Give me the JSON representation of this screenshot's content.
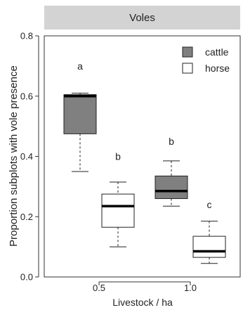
{
  "chart_data": {
    "type": "boxplot",
    "title": "Voles",
    "xlabel": "Livestock / ha",
    "ylabel": "Proportion subplots with vole presence",
    "ylim": [
      0,
      0.8
    ],
    "y_ticks": [
      0.0,
      0.2,
      0.4,
      0.6,
      0.8
    ],
    "y_tick_labels": [
      "0.0",
      "0.2",
      "0.4",
      "0.6",
      "0.8"
    ],
    "categories": [
      "0.5",
      "1.0"
    ],
    "grid": false,
    "legend_position": "top-right",
    "series": [
      {
        "name": "cattle",
        "color": "#808080",
        "boxes": [
          {
            "category": "0.5",
            "min": 0.35,
            "q1": 0.475,
            "median": 0.6,
            "q3": 0.605,
            "max": 0.61,
            "letter": "a",
            "letter_y": 0.7
          },
          {
            "category": "1.0",
            "min": 0.235,
            "q1": 0.26,
            "median": 0.285,
            "q3": 0.335,
            "max": 0.385,
            "letter": "b",
            "letter_y": 0.45
          }
        ]
      },
      {
        "name": "horse",
        "color": "#ffffff",
        "boxes": [
          {
            "category": "0.5",
            "min": 0.1,
            "q1": 0.165,
            "median": 0.235,
            "q3": 0.275,
            "max": 0.315,
            "letter": "b",
            "letter_y": 0.4
          },
          {
            "category": "1.0",
            "min": 0.045,
            "q1": 0.065,
            "median": 0.085,
            "q3": 0.135,
            "max": 0.185,
            "letter": "c",
            "letter_y": 0.24
          }
        ]
      }
    ]
  }
}
